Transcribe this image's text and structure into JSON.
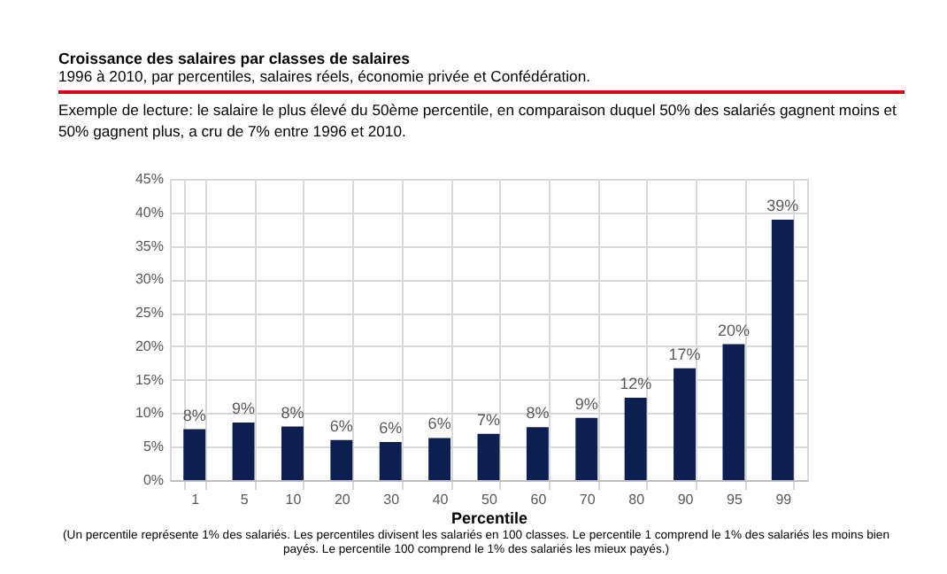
{
  "chart_data": {
    "type": "bar",
    "title": "Croissance des salaires par classes de salaires",
    "subtitle": "1996 à 2010, par percentiles, salaires réels, économie privée et Confédération.",
    "annotations": [
      "Exemple de lecture: le salaire le plus élevé du 50ème percentile, en comparaison duquel 50% des salariés gagnent moins et 50% gagnent plus, a cru de 7% entre 1996 et 2010.",
      "(Un percentile représente 1% des salariés. Les percentiles divisent les salariés en 100 classes. Le percentile 1 comprend le 1% des salariés les moins bien payés. Le percentile 100 comprend le 1% des salariés les mieux payés.)"
    ],
    "xlabel": "Percentile",
    "categories": [
      "1",
      "5",
      "10",
      "20",
      "30",
      "40",
      "50",
      "60",
      "70",
      "80",
      "90",
      "95",
      "99"
    ],
    "series": [
      {
        "color": "#0c1f50",
        "values": [
          7.6,
          8.6,
          8.0,
          6.0,
          5.7,
          6.3,
          6.9,
          7.9,
          9.3,
          12.3,
          16.7,
          20.3,
          38.9
        ],
        "value_labels": [
          "8%",
          "9%",
          "8%",
          "6%",
          "6%",
          "6%",
          "7%",
          "8%",
          "9%",
          "12%",
          "17%",
          "20%",
          "39%"
        ]
      }
    ],
    "ylim": [
      0,
      45
    ],
    "yticks": [
      {
        "value": 0,
        "label": "0%"
      },
      {
        "value": 5,
        "label": "5%"
      },
      {
        "value": 10,
        "label": "10%"
      },
      {
        "value": 15,
        "label": "15%"
      },
      {
        "value": 20,
        "label": "20%"
      },
      {
        "value": 25,
        "label": "25%"
      },
      {
        "value": 30,
        "label": "30%"
      },
      {
        "value": 35,
        "label": "35%"
      },
      {
        "value": 40,
        "label": "40%"
      },
      {
        "value": 45,
        "label": "45%"
      }
    ],
    "grid": true
  }
}
